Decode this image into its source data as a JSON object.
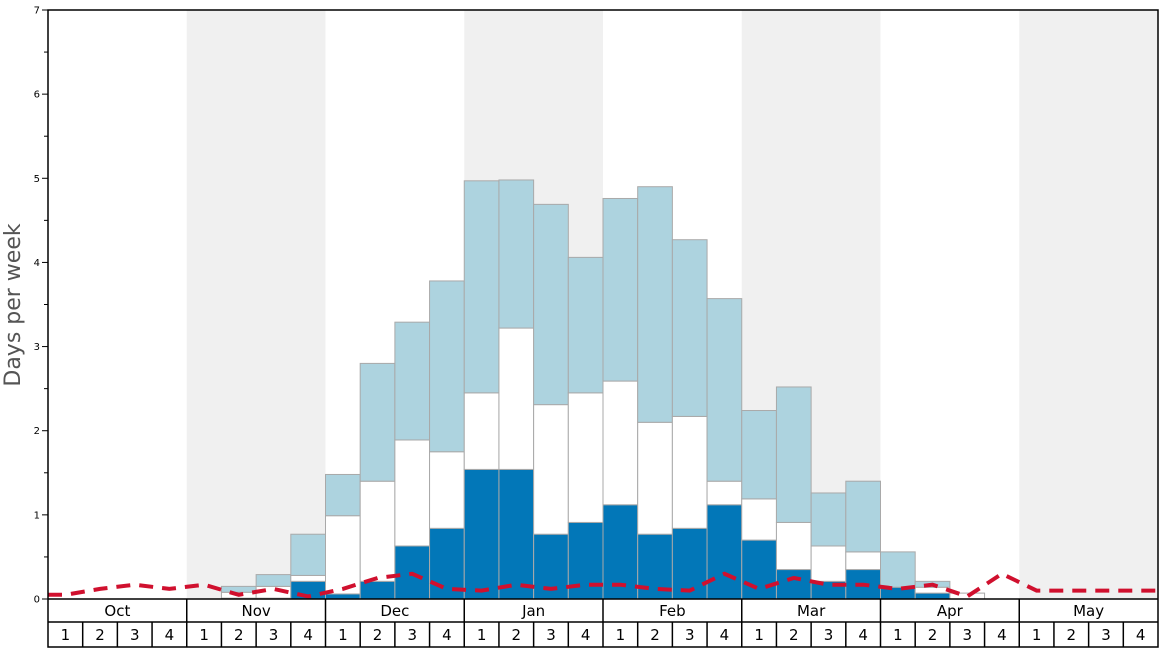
{
  "chart_data": {
    "type": "bar",
    "ylabel": "Days per week",
    "ylim": [
      0,
      7
    ],
    "yticks": [
      0,
      1,
      2,
      3,
      4,
      5,
      6,
      7
    ],
    "months": [
      "Oct",
      "Nov",
      "Dec",
      "Jan",
      "Feb",
      "Mar",
      "Apr",
      "May"
    ],
    "weeks": [
      "1",
      "2",
      "3",
      "4"
    ],
    "colors": {
      "band": "#f0f0f0",
      "light_blue": "#add3df",
      "white": "#ffffff",
      "dark_blue": "#0277b8",
      "bar_stroke": "#a9a9a9",
      "line": "#d0102e"
    },
    "series": [
      {
        "color": "#0277b8",
        "values": [
          0,
          0,
          0,
          0,
          0,
          0.01,
          0.01,
          0.21,
          0.06,
          0.21,
          0.63,
          0.84,
          1.54,
          1.54,
          0.77,
          0.91,
          1.12,
          0.77,
          0.84,
          1.12,
          0.7,
          0.35,
          0.21,
          0.35,
          0.14,
          0.07,
          0,
          0,
          0,
          0,
          0,
          0
        ]
      },
      {
        "color": "#ffffff",
        "values": [
          0,
          0,
          0,
          0,
          0,
          0.07,
          0.14,
          0.07,
          0.93,
          1.19,
          1.26,
          0.91,
          0.91,
          1.68,
          1.54,
          1.54,
          1.47,
          1.33,
          1.33,
          0.28,
          0.49,
          0.56,
          0.42,
          0.21,
          0,
          0.07,
          0.07,
          0,
          0,
          0,
          0,
          0
        ]
      },
      {
        "color": "#add3df",
        "values": [
          0,
          0,
          0,
          0,
          0,
          0.07,
          0.14,
          0.49,
          0.49,
          1.4,
          1.4,
          2.03,
          2.52,
          1.76,
          2.38,
          1.61,
          2.17,
          2.8,
          2.1,
          2.17,
          1.05,
          1.61,
          0.63,
          0.84,
          0.42,
          0.07,
          0,
          0,
          0,
          0,
          0,
          0
        ]
      },
      {
        "color": "#d0102e",
        "type": "line",
        "values": [
          0.05,
          0.12,
          0.17,
          0.12,
          0.17,
          0.05,
          0.12,
          0.03,
          0.12,
          0.25,
          0.3,
          0.12,
          0.1,
          0.17,
          0.12,
          0.17,
          0.17,
          0.12,
          0.1,
          0.3,
          0.12,
          0.25,
          0.17,
          0.17,
          0.12,
          0.17,
          0.03,
          0.3,
          0.1,
          0.1,
          0.1,
          0.1
        ]
      }
    ]
  }
}
